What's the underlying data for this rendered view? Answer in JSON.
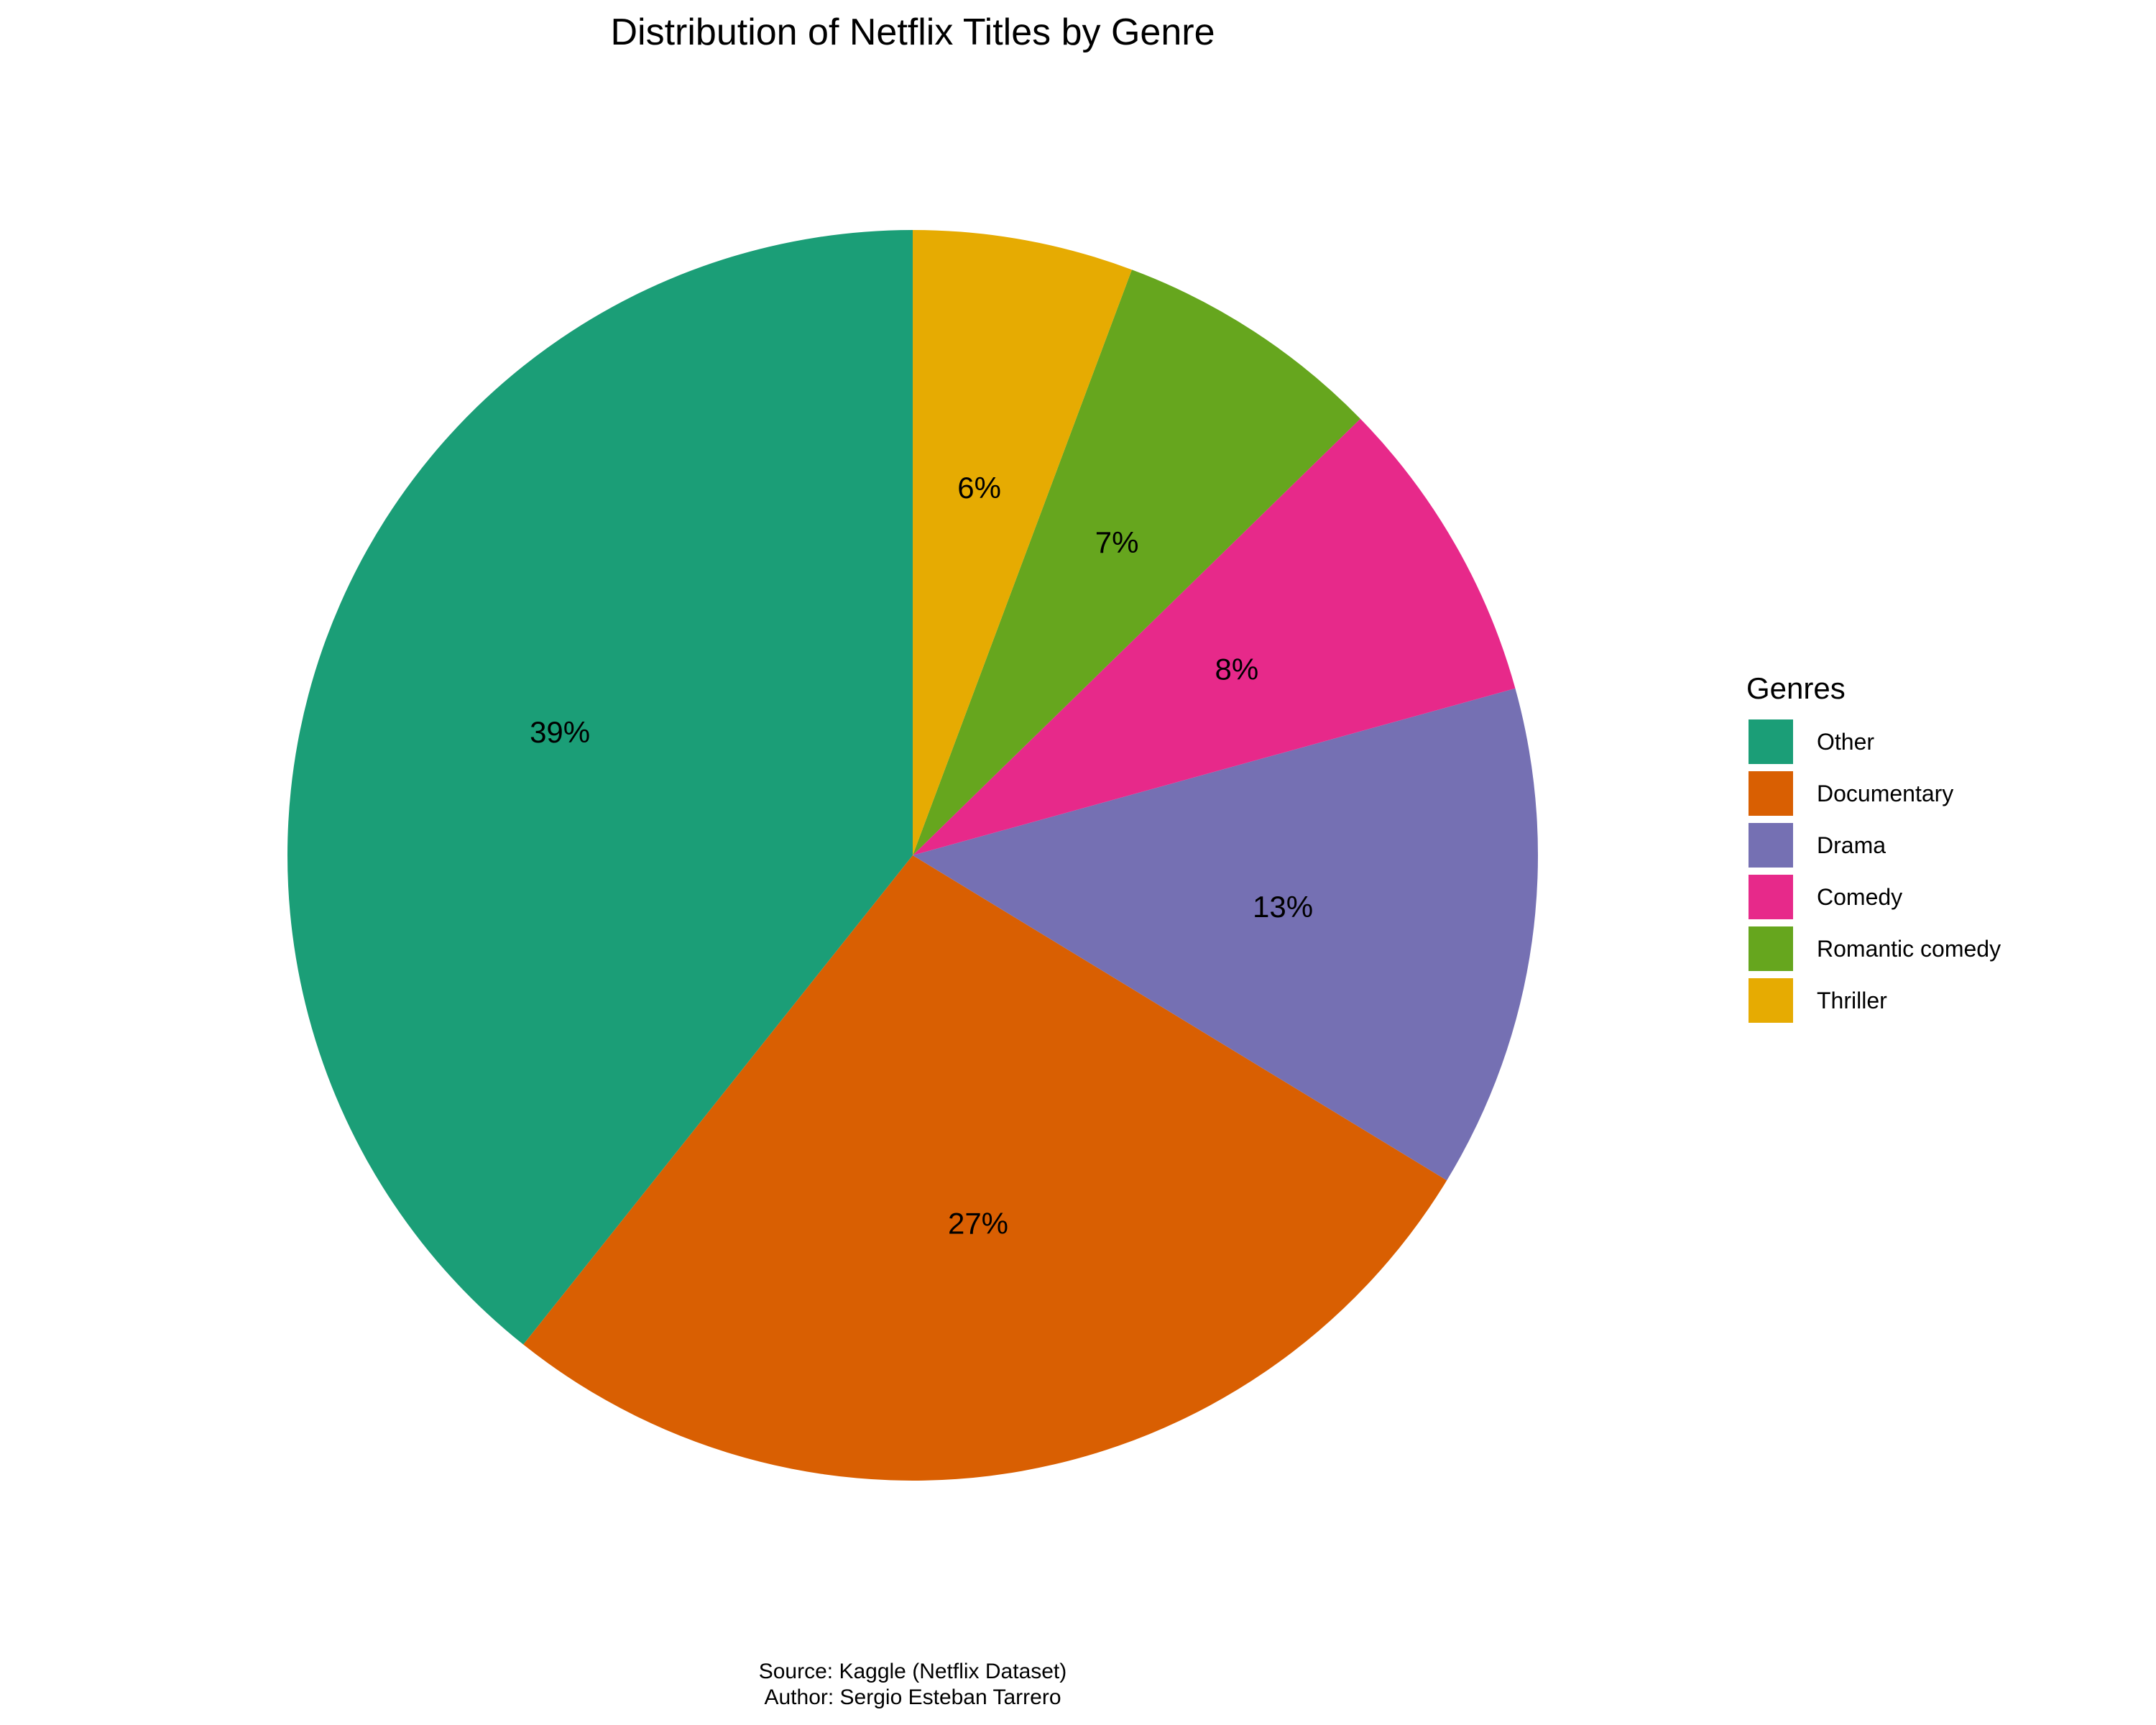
{
  "chart_data": {
    "type": "pie",
    "title": "Distribution of Netflix Titles by Genre",
    "legend_title": "Genres",
    "legend_position": "right",
    "start": "top",
    "direction": "counterclockwise",
    "slices": [
      {
        "label": "Other",
        "value": 39.3,
        "display": "39%",
        "color": "#1B9E77"
      },
      {
        "label": "Documentary",
        "value": 27.0,
        "display": "27%",
        "color": "#D95F02"
      },
      {
        "label": "Drama",
        "value": 13.0,
        "display": "13%",
        "color": "#7570B3"
      },
      {
        "label": "Comedy",
        "value": 8.0,
        "display": "8%",
        "color": "#E7298A"
      },
      {
        "label": "Romantic comedy",
        "value": 7.0,
        "display": "7%",
        "color": "#66A61E"
      },
      {
        "label": "Thriller",
        "value": 5.7,
        "display": "6%",
        "color": "#E6AB02"
      }
    ],
    "caption": {
      "source": "Source: Kaggle (Netflix Dataset)",
      "author": "Author: Sergio Esteban Tarrero"
    }
  }
}
